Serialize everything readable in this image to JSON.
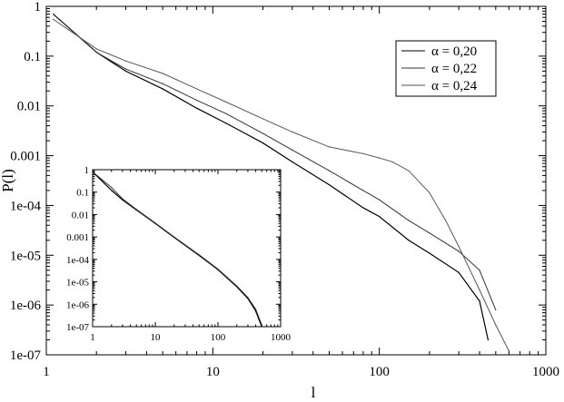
{
  "chart_data": [
    {
      "type": "line",
      "scale": "log-log",
      "xlabel": "l",
      "ylabel": "P(l)",
      "xlim": [
        1,
        1000
      ],
      "ylim": [
        1e-07,
        1
      ],
      "x_ticks": [
        "1",
        "10",
        "100",
        "1000"
      ],
      "y_ticks": [
        "1",
        "0.1",
        "0.01",
        "0.001",
        "1e-04",
        "1e-05",
        "1e-06",
        "1e-07"
      ],
      "legend_position": "top-right",
      "series": [
        {
          "name": "α = 0,20",
          "x": [
            1.1,
            2,
            3,
            5,
            8,
            12,
            20,
            30,
            50,
            80,
            100,
            150,
            200,
            300,
            400,
            450
          ],
          "y": [
            0.7,
            0.12,
            0.05,
            0.022,
            0.009,
            0.0045,
            0.0018,
            0.00075,
            0.00026,
            9e-05,
            6e-05,
            2e-05,
            1.1e-05,
            4.5e-06,
            1.2e-06,
            2e-07
          ]
        },
        {
          "name": "α = 0,22",
          "x": [
            1.1,
            2,
            3,
            5,
            8,
            12,
            20,
            30,
            50,
            80,
            100,
            150,
            200,
            300,
            400,
            500
          ],
          "y": [
            0.7,
            0.12,
            0.055,
            0.028,
            0.013,
            0.007,
            0.0028,
            0.0013,
            0.0005,
            0.0002,
            0.00013,
            5e-05,
            2.8e-05,
            1.2e-05,
            5e-06,
            8e-07
          ]
        },
        {
          "name": "α = 0,24",
          "x": [
            1.1,
            2,
            3,
            5,
            8,
            12,
            20,
            30,
            50,
            80,
            100,
            120,
            150,
            200,
            250,
            300,
            400,
            500,
            600
          ],
          "y": [
            0.55,
            0.14,
            0.08,
            0.045,
            0.022,
            0.012,
            0.0055,
            0.003,
            0.0015,
            0.0011,
            0.0009,
            0.00075,
            0.0005,
            0.00018,
            5e-05,
            1.5e-05,
            2e-06,
            4e-07,
            1.2e-07
          ]
        }
      ]
    },
    {
      "type": "line",
      "scale": "log-log",
      "inset": true,
      "xlim": [
        1,
        1000
      ],
      "ylim": [
        1e-07,
        1
      ],
      "x_ticks": [
        "1",
        "10",
        "100",
        "1000"
      ],
      "y_ticks": [
        "1",
        "0.1",
        "0.01",
        "0.001",
        "1e-04",
        "1e-05",
        "1e-06",
        "1e-07"
      ],
      "series": [
        {
          "x": [
            1,
            2,
            3,
            5,
            10,
            20,
            50,
            100,
            200,
            300,
            400,
            500
          ],
          "y": [
            0.8,
            0.12,
            0.045,
            0.016,
            0.004,
            0.00095,
            0.00015,
            3.5e-05,
            6e-06,
            1.8e-06,
            5e-07,
            1e-07
          ]
        },
        {
          "x": [
            1,
            2,
            3,
            5,
            10,
            20,
            50,
            100,
            200,
            300,
            400,
            500
          ],
          "y": [
            0.8,
            0.16,
            0.05,
            0.017,
            0.0042,
            0.001,
            0.00016,
            3.7e-05,
            6.5e-06,
            2e-06,
            6e-07,
            1.2e-07
          ]
        }
      ]
    }
  ]
}
